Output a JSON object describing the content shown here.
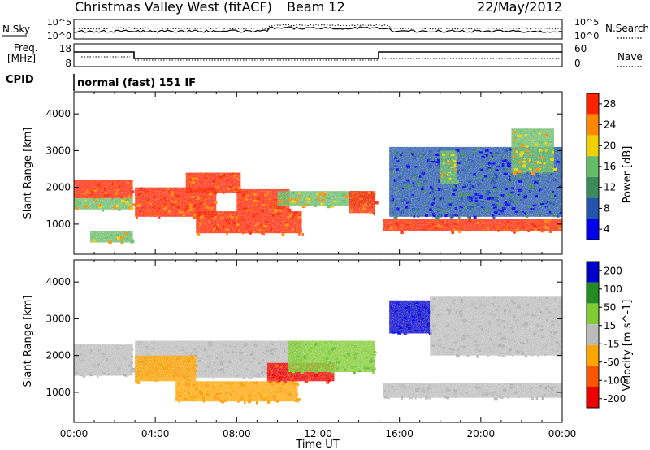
{
  "header": {
    "station": "Christmas Valley West (fitACF)",
    "beam": "Beam 12",
    "date": "22/May/2012"
  },
  "sky_panel": {
    "left_label": "N.Sky",
    "left_ticks": [
      "10^5",
      "10^0"
    ],
    "right_ticks": [
      "10^5",
      "10^0"
    ],
    "right_label": "N.Search"
  },
  "freq_panel": {
    "left_label_1": "Freq.",
    "left_label_2": "[MHz]",
    "left_ticks": [
      "18",
      "8"
    ],
    "right_ticks": [
      "60",
      "0"
    ],
    "right_label": "Nave"
  },
  "cpid": {
    "label": "CPID",
    "mode": "normal (fast) 151 IF"
  },
  "colors": {
    "power": [
      "#0000ee",
      "#2255aa",
      "#3c8c5a",
      "#66bb66",
      "#f0d000",
      "#ff8800",
      "#ff2200"
    ],
    "velocity": [
      "#ee0000",
      "#ff5500",
      "#ffa500",
      "#bbbbbb",
      "#7fcc33",
      "#228b22",
      "#0000cc"
    ],
    "ground": "#bbbbbb"
  },
  "chart_data": [
    {
      "type": "heatmap",
      "ylabel": "Slant Range [km]",
      "yticks": [
        1000,
        2000,
        3000,
        4000
      ],
      "ylim": [
        180,
        4600
      ],
      "xlim": [
        0,
        24
      ],
      "colorbar_label": "Power [dB]",
      "colorbar_ticks": [
        "28",
        "24",
        "20",
        "16",
        "12",
        "8",
        "4"
      ],
      "series": [
        {
          "x_range": [
            0,
            2.9
          ],
          "y_range": [
            1700,
            2200
          ],
          "level": "high"
        },
        {
          "x_range": [
            0,
            2.9
          ],
          "y_range": [
            1400,
            1700
          ],
          "level": "medium"
        },
        {
          "x_range": [
            0.8,
            2.9
          ],
          "y_range": [
            500,
            800
          ],
          "level": "medium"
        },
        {
          "x_range": [
            3.0,
            7.0
          ],
          "y_range": [
            1200,
            2000
          ],
          "level": "high"
        },
        {
          "x_range": [
            5.5,
            8.2
          ],
          "y_range": [
            1850,
            2400
          ],
          "level": "high"
        },
        {
          "x_range": [
            6.0,
            11.2
          ],
          "y_range": [
            750,
            1350
          ],
          "level": "high"
        },
        {
          "x_range": [
            8.0,
            10.6
          ],
          "y_range": [
            1350,
            1950
          ],
          "level": "high"
        },
        {
          "x_range": [
            10.0,
            14.8
          ],
          "y_range": [
            1500,
            1900
          ],
          "level": "medium"
        },
        {
          "x_range": [
            13.5,
            14.8
          ],
          "y_range": [
            1300,
            1900
          ],
          "level": "high"
        },
        {
          "x_range": [
            15.2,
            24
          ],
          "y_range": [
            800,
            1150
          ],
          "level": "high"
        },
        {
          "x_range": [
            15.5,
            24
          ],
          "y_range": [
            1200,
            3100
          ],
          "level": "low"
        },
        {
          "x_range": [
            18.0,
            18.8
          ],
          "y_range": [
            2100,
            3000
          ],
          "level": "medium"
        },
        {
          "x_range": [
            21.5,
            23.6
          ],
          "y_range": [
            2400,
            3600
          ],
          "level": "medium"
        }
      ]
    },
    {
      "type": "heatmap",
      "ylabel": "Slant Range [km]",
      "yticks": [
        1000,
        2000,
        3000,
        4000
      ],
      "ylim": [
        180,
        4600
      ],
      "xlim": [
        0,
        24
      ],
      "xlabel": "Time UT",
      "xticks": [
        "00:00",
        "04:00",
        "08:00",
        "12:00",
        "16:00",
        "20:00",
        "00:00"
      ],
      "colorbar_label": "Velocity [m s^-1]",
      "colorbar_ticks": [
        "200",
        "100",
        "50",
        "15",
        "-15",
        "-50",
        "-100",
        "-200"
      ],
      "series": [
        {
          "x_range": [
            0,
            2.9
          ],
          "y_range": [
            1450,
            2300
          ],
          "level": "ground"
        },
        {
          "x_range": [
            3.0,
            11.2
          ],
          "y_range": [
            1400,
            2400
          ],
          "level": "ground"
        },
        {
          "x_range": [
            3.0,
            6.0
          ],
          "y_range": [
            1300,
            2000
          ],
          "level": "toward"
        },
        {
          "x_range": [
            5.0,
            11.0
          ],
          "y_range": [
            750,
            1300
          ],
          "level": "toward"
        },
        {
          "x_range": [
            9.5,
            12.8
          ],
          "y_range": [
            1300,
            1800
          ],
          "level": "strong-away"
        },
        {
          "x_range": [
            10.5,
            14.8
          ],
          "y_range": [
            1550,
            2400
          ],
          "level": "toward-green"
        },
        {
          "x_range": [
            15.2,
            24
          ],
          "y_range": [
            850,
            1250
          ],
          "level": "ground"
        },
        {
          "x_range": [
            15.5,
            17.5
          ],
          "y_range": [
            2600,
            3500
          ],
          "level": "toward-blue"
        },
        {
          "x_range": [
            17.5,
            24
          ],
          "y_range": [
            2000,
            3600
          ],
          "level": "ground"
        }
      ]
    }
  ]
}
